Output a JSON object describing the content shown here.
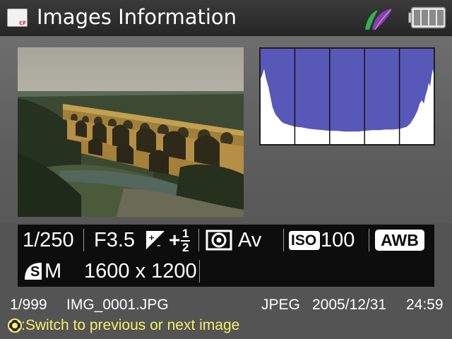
{
  "header": {
    "title": "Images Information",
    "card_icon": "cf-card-icon",
    "card_label": "CF",
    "status_icon": "leaf-icon",
    "battery_icon": "battery-full-icon"
  },
  "preview": {
    "photo_icon": "aqueduct-photo"
  },
  "histogram": {
    "icon": "histogram-icon",
    "fill_color": "#5858b8",
    "sections": 5
  },
  "shooting_info": {
    "shutter_speed": "1/250",
    "aperture": "F3.5",
    "exposure_comp_icon": "exposure-compensation-icon",
    "exposure_comp_sign": "+",
    "exposure_comp_num": "1",
    "exposure_comp_den": "2",
    "metering_icon": "evaluative-metering-icon",
    "mode": "Av",
    "iso_label": "ISO",
    "iso_value": "100",
    "white_balance": "AWB",
    "quality_icon": "quality-s-icon",
    "quality_letter": "S",
    "size_letter": "M",
    "resolution": "1600 x 1200"
  },
  "file_info": {
    "index": "1/999",
    "filename": "IMG_0001.JPG",
    "format": "JPEG",
    "date": "2005/12/31",
    "time": "24:59"
  },
  "hint": {
    "icon": "dial-icon",
    "text": ":Switch to previous or next image",
    "color": "#f5f06a"
  }
}
